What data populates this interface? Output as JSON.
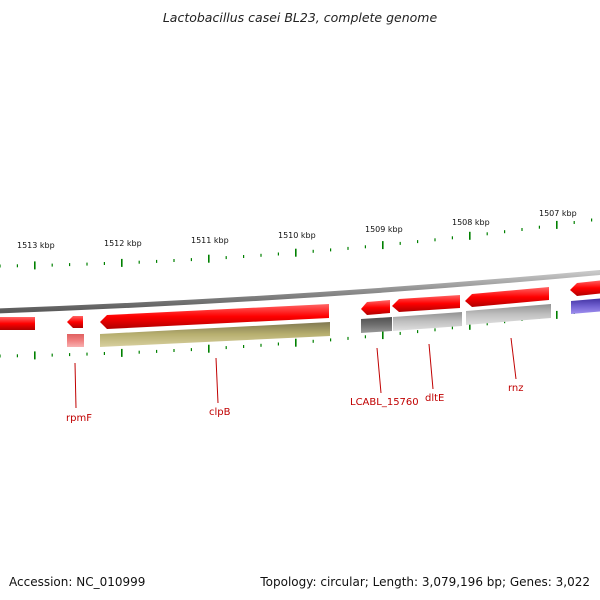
{
  "title": "Lactobacillus casei BL23, complete genome",
  "accession": "Accession: NC_010999",
  "summary": "Topology: circular; Length: 3,079,196 bp; Genes: 3,022",
  "scale_labels": [
    "1513 kbp",
    "1512 kbp",
    "1511 kbp",
    "1510 kbp",
    "1509 kbp",
    "1508 kbp",
    "1507 kbp"
  ],
  "gene_labels": [
    "rpmF",
    "clpB",
    "LCABL_15760",
    "dltE",
    "rnz"
  ],
  "colors": {
    "cds_red": "#ff0000",
    "rna_pink": "#f08080",
    "clpB_olive": "#b8b070",
    "gray_dark": "#707070",
    "gray_light": "#c0c0c0",
    "blue": "#7060d0",
    "tick_green": "#008000",
    "backbone": "#8c8c8c",
    "label_red": "#c00000"
  }
}
